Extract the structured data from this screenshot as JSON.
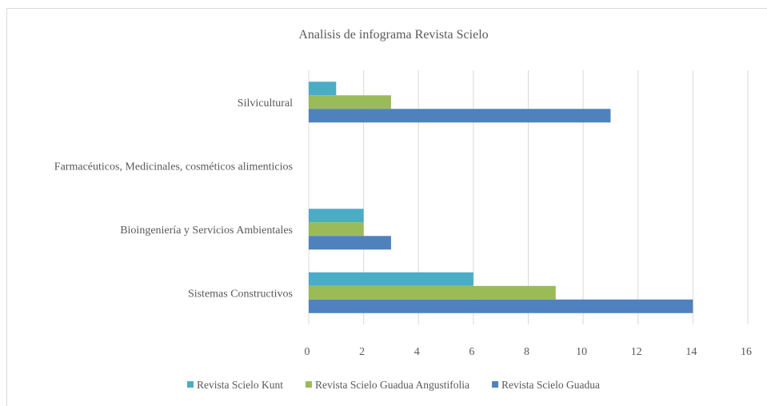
{
  "chart_data": {
    "type": "bar",
    "orientation": "horizontal",
    "title": "Analisis de infograma Revista Scielo",
    "xlabel": "",
    "ylabel": "",
    "xlim": [
      0,
      16
    ],
    "xticks": [
      "0",
      "2",
      "4",
      "6",
      "8",
      "10",
      "12",
      "14",
      "16"
    ],
    "grid": true,
    "legend_position": "bottom",
    "categories": [
      "Sistemas Constructivos",
      "Bioingeniería y Servicios Ambientales",
      "Farmacéuticos, Medicinales, cosméticos alimenticios",
      "Silvicultural"
    ],
    "series": [
      {
        "name": "Revista Scielo Kunt",
        "color": "#4bacc6",
        "values": [
          6,
          2,
          0,
          1
        ]
      },
      {
        "name": "Revista Scielo Guadua Angustifolia",
        "color": "#9bbb59",
        "values": [
          9,
          2,
          0,
          3
        ]
      },
      {
        "name": "Revista Scielo Guadua",
        "color": "#4f81bd",
        "values": [
          14,
          3,
          0,
          11
        ]
      }
    ]
  }
}
